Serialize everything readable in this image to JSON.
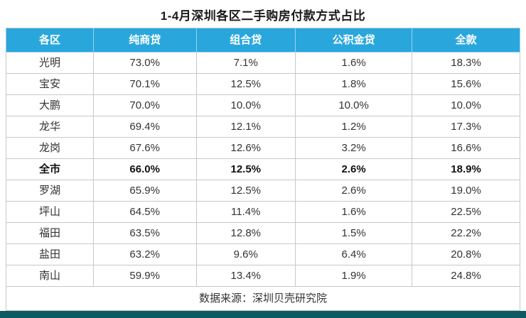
{
  "title": "1-4月深圳各区二手购房付款方式占比",
  "source": "数据来源：深圳贝壳研究院",
  "colors": {
    "header_bg": "#29a7dd",
    "header_text": "#ffffff",
    "border": "#c8c8c8",
    "bottom_strip": "#0e5a60"
  },
  "chart_data": {
    "type": "table",
    "title": "1-4月深圳各区二手购房付款方式占比",
    "columns": [
      "各区",
      "纯商贷",
      "组合贷",
      "公积金贷",
      "全款"
    ],
    "rows": [
      {
        "district": "光明",
        "values": [
          "73.0%",
          "7.1%",
          "1.6%",
          "18.3%"
        ],
        "bold": false
      },
      {
        "district": "宝安",
        "values": [
          "70.1%",
          "12.5%",
          "1.8%",
          "15.6%"
        ],
        "bold": false
      },
      {
        "district": "大鹏",
        "values": [
          "70.0%",
          "10.0%",
          "10.0%",
          "10.0%"
        ],
        "bold": false
      },
      {
        "district": "龙华",
        "values": [
          "69.4%",
          "12.1%",
          "1.2%",
          "17.3%"
        ],
        "bold": false
      },
      {
        "district": "龙岗",
        "values": [
          "67.6%",
          "12.6%",
          "3.2%",
          "16.6%"
        ],
        "bold": false
      },
      {
        "district": "全市",
        "values": [
          "66.0%",
          "12.5%",
          "2.6%",
          "18.9%"
        ],
        "bold": true
      },
      {
        "district": "罗湖",
        "values": [
          "65.9%",
          "12.5%",
          "2.6%",
          "19.0%"
        ],
        "bold": false
      },
      {
        "district": "坪山",
        "values": [
          "64.5%",
          "11.4%",
          "1.6%",
          "22.5%"
        ],
        "bold": false
      },
      {
        "district": "福田",
        "values": [
          "63.5%",
          "12.8%",
          "1.5%",
          "22.2%"
        ],
        "bold": false
      },
      {
        "district": "盐田",
        "values": [
          "63.2%",
          "9.6%",
          "6.4%",
          "20.8%"
        ],
        "bold": false
      },
      {
        "district": "南山",
        "values": [
          "59.9%",
          "13.4%",
          "1.9%",
          "24.8%"
        ],
        "bold": false
      }
    ],
    "source": "数据来源：深圳贝壳研究院"
  }
}
